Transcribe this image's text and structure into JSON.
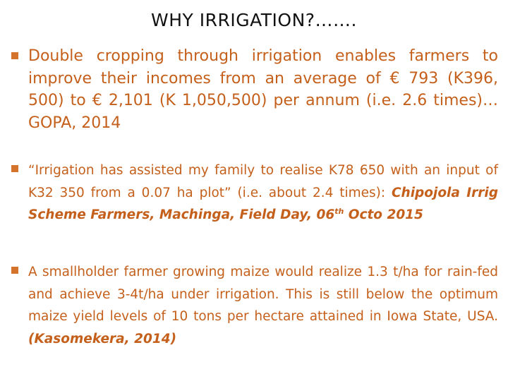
{
  "title": "WHY IRRIGATION?…….",
  "bullets": [
    {
      "text": "Double cropping through irrigation enables farmers to improve their incomes from an average of € 793 (K396, 500) to € 2,101 (K 1,050,500) per annum (i.e. 2.6 times)…GOPA, 2014"
    },
    {
      "text": "“Irrigation has assisted my family to realise K78 650 with an input of K32 350 from a 0.07 ha plot” (i.e. about 2.4 times): ",
      "source_part1": "Chipojola Irrig Scheme Farmers, Machinga, Field Day, 06",
      "source_sup": "th",
      "source_part2": " Octo 2015"
    },
    {
      "text": "A smallholder farmer growing maize would realize 1.3 t/ha for rain-fed and achieve 3-4t/ha under irrigation. This is still below the optimum maize yield levels of 10 tons per hectare attained in Iowa State, USA. ",
      "source": "(Kasomekera, 2014)"
    }
  ],
  "colors": {
    "text": "#c4601c",
    "bullet": "#d4742c",
    "title": "#111111"
  }
}
